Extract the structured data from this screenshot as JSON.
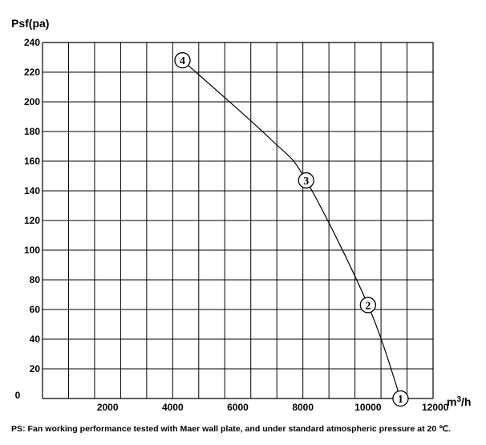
{
  "chart_data": {
    "type": "line",
    "ylabel": "Psf(pa)",
    "xlabel_prefix": "m",
    "xlabel_sup": "3",
    "xlabel_suffix": "/h",
    "xlim": [
      0,
      12000
    ],
    "ylim": [
      0,
      240
    ],
    "x_ticks": [
      "0",
      "2000",
      "4000",
      "6000",
      "8000",
      "10000",
      "12000"
    ],
    "y_ticks": [
      "20",
      "40",
      "60",
      "80",
      "100",
      "120",
      "140",
      "160",
      "180",
      "200",
      "220",
      "240"
    ],
    "grid": true,
    "series": [
      {
        "x": [
          4300,
          7000,
          8100,
          10000,
          11000
        ],
        "y": [
          228,
          175,
          147,
          63,
          0
        ]
      }
    ],
    "point_labels": [
      "4",
      "3",
      "3",
      "2",
      "1"
    ],
    "marked_points": [
      {
        "label": "4",
        "x": 4300,
        "y": 228
      },
      {
        "label": "3",
        "x": 8100,
        "y": 147
      },
      {
        "label": "2",
        "x": 10000,
        "y": 63
      },
      {
        "label": "1",
        "x": 11000,
        "y": 0
      }
    ],
    "note": "PS: Fan working performance tested with Maer wall plate, and under standard atmospheric pressure at 20 ℃."
  }
}
